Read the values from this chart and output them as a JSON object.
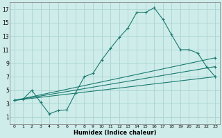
{
  "xlabel": "Humidex (Indice chaleur)",
  "bg_color": "#ceecea",
  "grid_color": "#a8d5d2",
  "line_color": "#1a7a6e",
  "xlim": [
    -0.5,
    23.5
  ],
  "ylim": [
    0.0,
    18.0
  ],
  "xticks": [
    0,
    1,
    2,
    3,
    4,
    5,
    6,
    7,
    8,
    9,
    10,
    11,
    12,
    13,
    14,
    15,
    16,
    17,
    18,
    19,
    20,
    21,
    22,
    23
  ],
  "yticks": [
    1,
    3,
    5,
    7,
    9,
    11,
    13,
    15,
    17
  ],
  "line1_x": [
    0,
    1,
    2,
    3,
    4,
    5,
    6,
    7,
    8,
    9,
    10,
    11,
    12,
    13,
    14,
    15,
    16,
    17,
    18,
    19,
    20,
    21,
    22,
    23
  ],
  "line1_y": [
    3.5,
    3.7,
    5.0,
    3.2,
    1.5,
    2.0,
    2.1,
    4.6,
    7.0,
    7.5,
    9.5,
    11.2,
    12.8,
    14.2,
    16.5,
    16.5,
    17.2,
    15.5,
    13.2,
    11.0,
    11.0,
    10.5,
    8.5,
    7.0
  ],
  "line2_x": [
    0,
    23
  ],
  "line2_y": [
    3.5,
    9.8
  ],
  "line3_x": [
    0,
    23
  ],
  "line3_y": [
    3.5,
    8.5
  ],
  "line4_x": [
    0,
    23
  ],
  "line4_y": [
    3.5,
    7.0
  ]
}
